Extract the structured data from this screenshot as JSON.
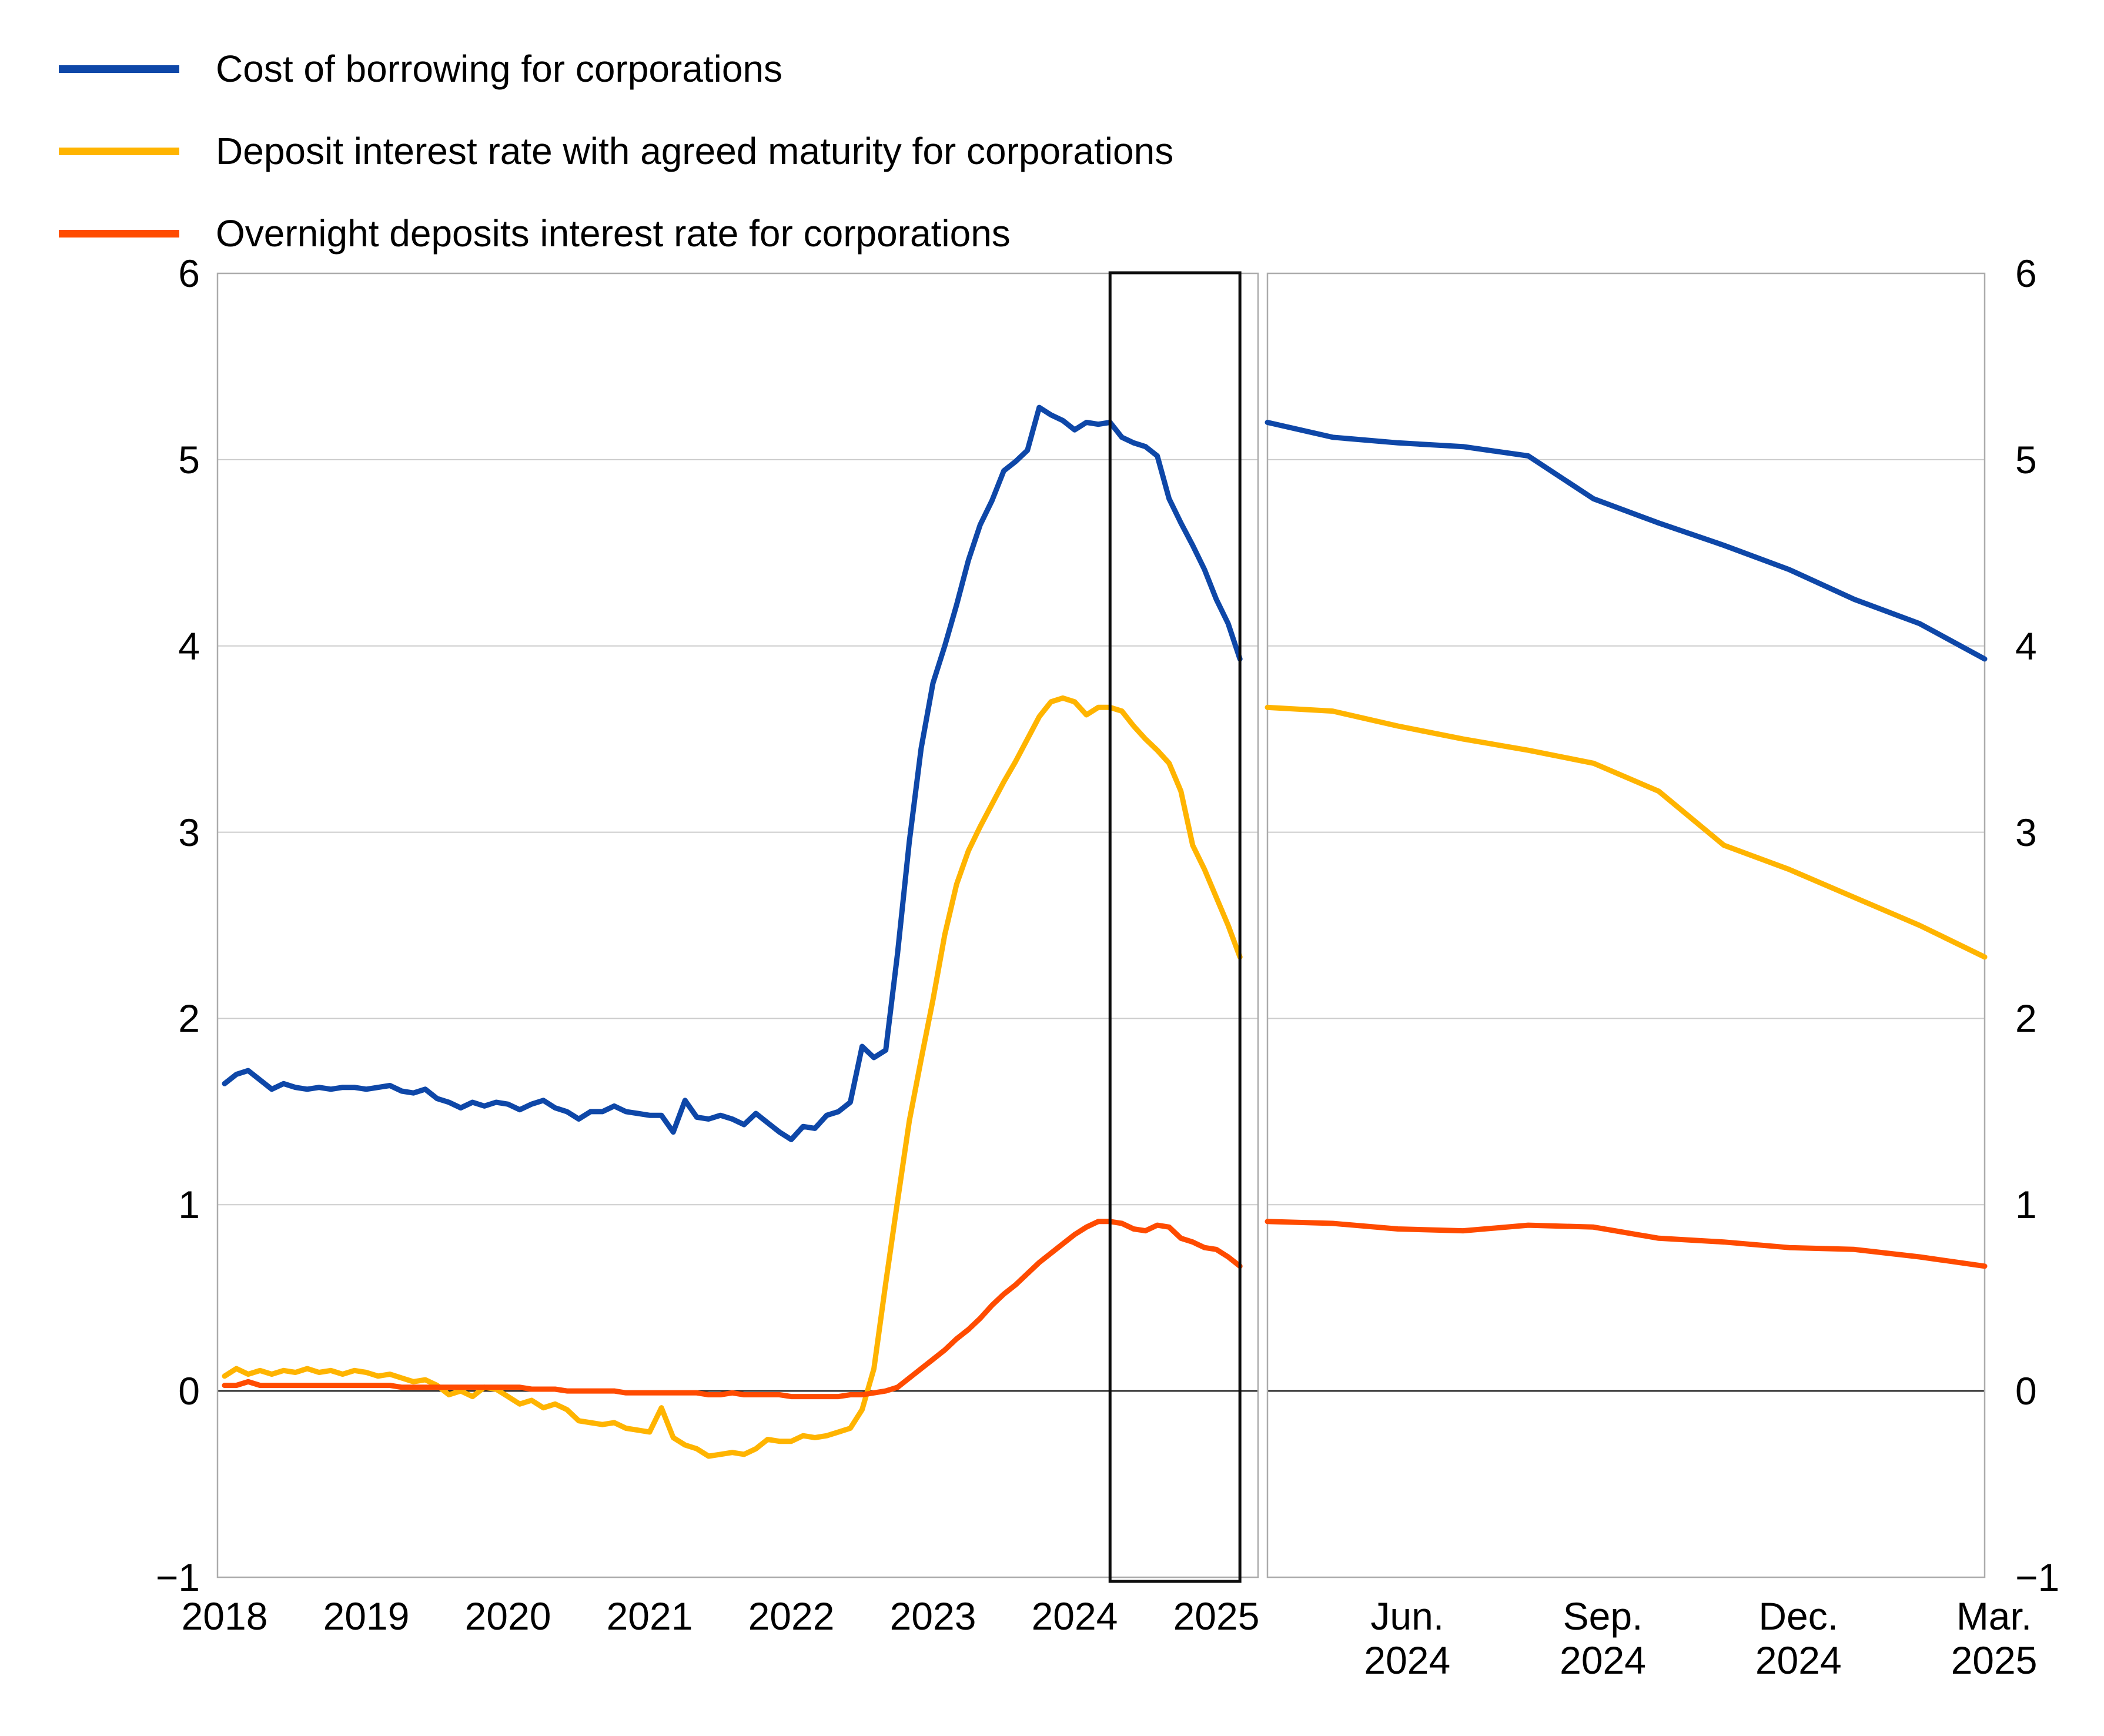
{
  "legend": {
    "items": [
      {
        "label": "Cost of borrowing for corporations",
        "color": "#0E47A8"
      },
      {
        "label": "Deposit interest rate with agreed maturity for corporations",
        "color": "#FFB400"
      },
      {
        "label": "Overnight deposits interest rate for corporations",
        "color": "#FF4B00"
      }
    ]
  },
  "chart_data": [
    {
      "type": "line",
      "panel": "left",
      "title": "",
      "x_unit": "month",
      "x_start": "2018-01",
      "x_end": "2025-03",
      "x_tick_labels": [
        "2018",
        "2019",
        "2020",
        "2021",
        "2022",
        "2023",
        "2024",
        "2025"
      ],
      "y_tick_labels": [
        "6",
        "5",
        "4",
        "3",
        "2",
        "1",
        "0",
        "−1"
      ],
      "yticks": [
        6,
        5,
        4,
        3,
        2,
        1,
        0,
        -1
      ],
      "ylim": [
        -1,
        6
      ],
      "grid": true,
      "zero_line": true,
      "legend_position": "top-left",
      "highlight_box": {
        "x_from": "2024-04",
        "x_to": "2025-03"
      },
      "series": [
        {
          "name": "Cost of borrowing for corporations",
          "color": "#0E47A8",
          "values": [
            1.65,
            1.7,
            1.72,
            1.67,
            1.62,
            1.65,
            1.63,
            1.62,
            1.63,
            1.62,
            1.63,
            1.63,
            1.62,
            1.63,
            1.64,
            1.61,
            1.6,
            1.62,
            1.57,
            1.55,
            1.52,
            1.55,
            1.53,
            1.55,
            1.54,
            1.51,
            1.54,
            1.56,
            1.52,
            1.5,
            1.46,
            1.5,
            1.5,
            1.53,
            1.5,
            1.49,
            1.48,
            1.48,
            1.39,
            1.56,
            1.47,
            1.46,
            1.48,
            1.46,
            1.43,
            1.49,
            1.44,
            1.39,
            1.35,
            1.42,
            1.41,
            1.48,
            1.5,
            1.55,
            1.85,
            1.79,
            1.83,
            2.35,
            2.95,
            3.45,
            3.8,
            4.0,
            4.22,
            4.46,
            4.65,
            4.78,
            4.94,
            4.99,
            5.05,
            5.28,
            5.24,
            5.21,
            5.16,
            5.2,
            5.19,
            5.2,
            5.12,
            5.09,
            5.07,
            5.02,
            4.79,
            4.66,
            4.54,
            4.41,
            4.25,
            4.12,
            3.93
          ]
        },
        {
          "name": "Deposit interest rate with agreed maturity for corporations",
          "color": "#FFB400",
          "values": [
            0.08,
            0.12,
            0.09,
            0.11,
            0.09,
            0.11,
            0.1,
            0.12,
            0.1,
            0.11,
            0.09,
            0.11,
            0.1,
            0.08,
            0.09,
            0.07,
            0.05,
            0.06,
            0.03,
            -0.02,
            0.0,
            -0.03,
            0.02,
            0.01,
            -0.03,
            -0.07,
            -0.05,
            -0.09,
            -0.07,
            -0.1,
            -0.16,
            -0.17,
            -0.18,
            -0.17,
            -0.2,
            -0.21,
            -0.22,
            -0.09,
            -0.25,
            -0.29,
            -0.31,
            -0.35,
            -0.34,
            -0.33,
            -0.34,
            -0.31,
            -0.26,
            -0.27,
            -0.27,
            -0.24,
            -0.25,
            -0.24,
            -0.22,
            -0.2,
            -0.1,
            0.12,
            0.58,
            1.02,
            1.45,
            1.78,
            2.1,
            2.45,
            2.72,
            2.9,
            3.03,
            3.15,
            3.27,
            3.38,
            3.5,
            3.62,
            3.7,
            3.72,
            3.7,
            3.63,
            3.67,
            3.67,
            3.65,
            3.57,
            3.5,
            3.44,
            3.37,
            3.22,
            2.93,
            2.8,
            2.65,
            2.5,
            2.33
          ]
        },
        {
          "name": "Overnight deposits interest rate for corporations",
          "color": "#FF4B00",
          "values": [
            0.03,
            0.03,
            0.05,
            0.03,
            0.03,
            0.03,
            0.03,
            0.03,
            0.03,
            0.03,
            0.03,
            0.03,
            0.03,
            0.03,
            0.03,
            0.02,
            0.02,
            0.02,
            0.02,
            0.02,
            0.02,
            0.02,
            0.02,
            0.02,
            0.02,
            0.02,
            0.01,
            0.01,
            0.01,
            0.0,
            0.0,
            0.0,
            0.0,
            0.0,
            -0.01,
            -0.01,
            -0.01,
            -0.01,
            -0.01,
            -0.01,
            -0.01,
            -0.02,
            -0.02,
            -0.01,
            -0.02,
            -0.02,
            -0.02,
            -0.02,
            -0.03,
            -0.03,
            -0.03,
            -0.03,
            -0.03,
            -0.02,
            -0.02,
            -0.01,
            0.0,
            0.02,
            0.07,
            0.12,
            0.17,
            0.22,
            0.28,
            0.33,
            0.39,
            0.46,
            0.52,
            0.57,
            0.63,
            0.69,
            0.74,
            0.79,
            0.84,
            0.88,
            0.91,
            0.91,
            0.9,
            0.87,
            0.86,
            0.89,
            0.88,
            0.82,
            0.8,
            0.77,
            0.76,
            0.72,
            0.67
          ]
        }
      ]
    },
    {
      "type": "line",
      "panel": "right",
      "title": "",
      "x_unit": "month",
      "x_start": "2024-04",
      "x_end": "2025-03",
      "x_tick_labels": [
        [
          "Jun.",
          "2024"
        ],
        [
          "Sep.",
          "2024"
        ],
        [
          "Dec.",
          "2024"
        ],
        [
          "Mar.",
          "2025"
        ]
      ],
      "x_tick_month_index": [
        2,
        5,
        8,
        11
      ],
      "y_tick_labels": [
        "6",
        "5",
        "4",
        "3",
        "2",
        "1",
        "0",
        "−1"
      ],
      "yticks": [
        6,
        5,
        4,
        3,
        2,
        1,
        0,
        -1
      ],
      "ylim": [
        -1,
        6
      ],
      "grid": true,
      "zero_line": true,
      "series": [
        {
          "name": "Cost of borrowing for corporations",
          "color": "#0E47A8",
          "values": [
            5.2,
            5.12,
            5.09,
            5.07,
            5.02,
            4.79,
            4.66,
            4.54,
            4.41,
            4.25,
            4.12,
            3.93
          ]
        },
        {
          "name": "Deposit interest rate with agreed maturity for corporations",
          "color": "#FFB400",
          "values": [
            3.67,
            3.65,
            3.57,
            3.5,
            3.44,
            3.37,
            3.22,
            2.93,
            2.8,
            2.65,
            2.5,
            2.33
          ]
        },
        {
          "name": "Overnight deposits interest rate for corporations",
          "color": "#FF4B00",
          "values": [
            0.91,
            0.9,
            0.87,
            0.86,
            0.89,
            0.88,
            0.82,
            0.8,
            0.77,
            0.76,
            0.72,
            0.67
          ]
        }
      ]
    }
  ]
}
